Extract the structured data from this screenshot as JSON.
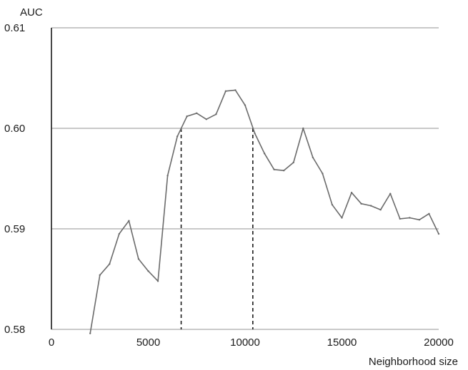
{
  "chart_data": {
    "type": "line",
    "title": "",
    "xlabel": "Neighborhood size",
    "ylabel": "AUC",
    "xlim": [
      0,
      20000
    ],
    "ylim": [
      0.58,
      0.61
    ],
    "x_ticks": [
      0,
      5000,
      10000,
      15000,
      20000
    ],
    "x_tick_labels": [
      "0",
      "5000",
      "10000",
      "15000",
      "20000"
    ],
    "y_ticks": [
      0.58,
      0.59,
      0.6,
      0.61
    ],
    "y_tick_labels": [
      "0.58",
      "0.59",
      "0.60",
      "0.61"
    ],
    "grid": "horizontal",
    "colors": {
      "series": "#6b6b6b",
      "grid": "#a9a9a9",
      "axis": "#1a1a1a"
    },
    "series": [
      {
        "x": [
          2000,
          2500,
          3000,
          3500,
          4000,
          4500,
          5000,
          5500,
          6000,
          6500,
          7000,
          7500,
          8000,
          8500,
          9000,
          9500,
          10000,
          10500,
          11000,
          11500,
          12000,
          12500,
          13000,
          13500,
          14000,
          14500,
          15000,
          15500,
          16000,
          16500,
          17000,
          17500,
          18000,
          18500,
          19000,
          19500,
          20000
        ],
        "values": [
          0.5796,
          0.5854,
          0.5865,
          0.5895,
          0.5908,
          0.587,
          0.5858,
          0.5848,
          0.5953,
          0.5992,
          0.6012,
          0.6015,
          0.6009,
          0.6014,
          0.6037,
          0.6038,
          0.6023,
          0.5995,
          0.5975,
          0.5959,
          0.5958,
          0.5966,
          0.6,
          0.5971,
          0.5955,
          0.5924,
          0.5911,
          0.5936,
          0.5925,
          0.5923,
          0.5919,
          0.5935,
          0.591,
          0.5911,
          0.5909,
          0.5915,
          0.5895
        ]
      }
    ],
    "markers": [
      {
        "x": 6700,
        "y": 0.6
      },
      {
        "x": 10400,
        "y": 0.6
      }
    ]
  }
}
